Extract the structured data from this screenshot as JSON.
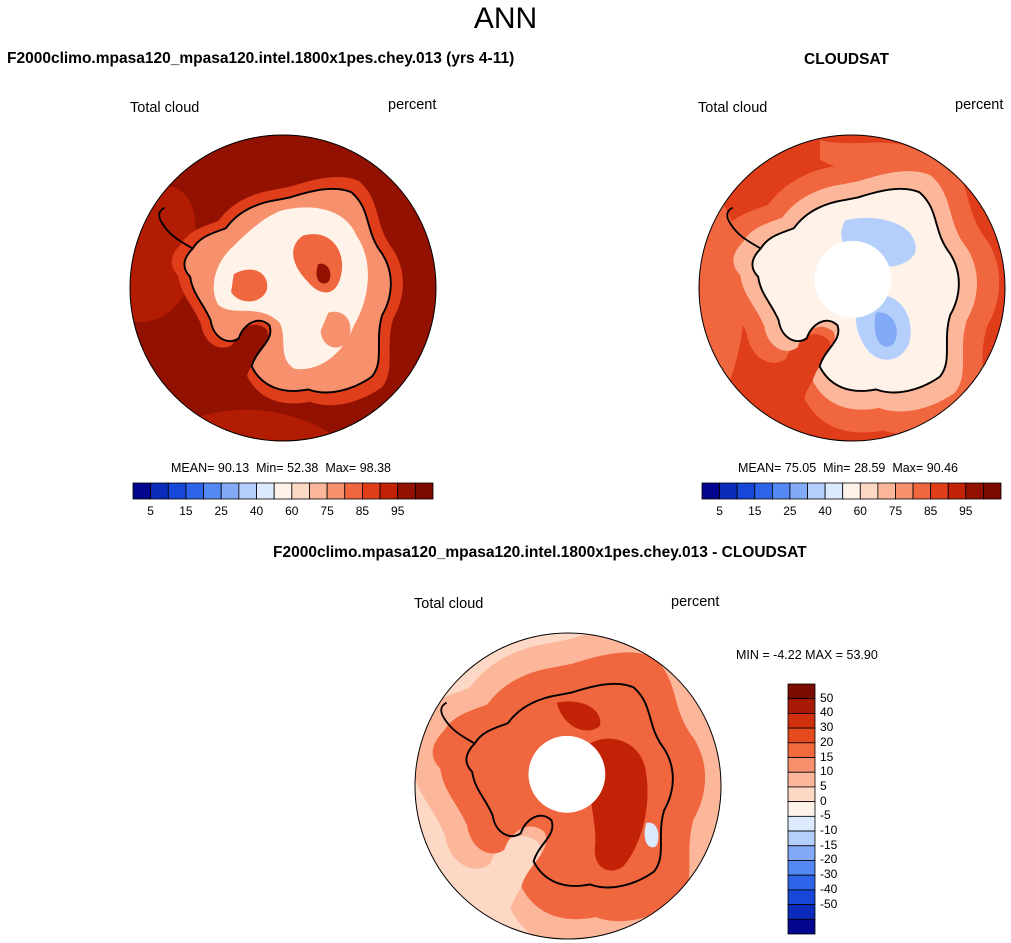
{
  "page": {
    "season": "ANN"
  },
  "panels": [
    {
      "id": "test",
      "title": "F2000climo.mpasa120_mpasa120.intel.1800x1pes.chey.013 (yrs 4-11)",
      "variable": "Total cloud",
      "units": "percent",
      "mean": "90.13",
      "min": "52.38",
      "max": "98.38"
    },
    {
      "id": "reference",
      "title": "CLOUDSAT",
      "variable": "Total cloud",
      "units": "percent",
      "mean": "75.05",
      "min": "28.59",
      "max": "90.46"
    },
    {
      "id": "difference",
      "title": "F2000climo.mpasa120_mpasa120.intel.1800x1pes.chey.013 - CLOUDSAT",
      "variable": "Total cloud",
      "units": "percent",
      "min": "-4.22",
      "max": "53.90"
    }
  ],
  "labels": {
    "mean_label": "MEAN=",
    "min_label": "Min=",
    "max_label": "Max=",
    "diff_min_label": "MIN =",
    "diff_max_label": "MAX ="
  },
  "colorbar_main": {
    "colors": [
      "#05068f",
      "#0b2bbb",
      "#1747d6",
      "#2e64e8",
      "#5488f2",
      "#82aaf7",
      "#b4cffb",
      "#dceafd",
      "#fff2e8",
      "#fdd8c4",
      "#fcb79b",
      "#f7906c",
      "#f0663f",
      "#e03e1a",
      "#c22307",
      "#931100",
      "#7a0b00"
    ],
    "tick_labels": [
      "5",
      "15",
      "25",
      "40",
      "60",
      "75",
      "85",
      "95"
    ]
  },
  "colorbar_diff": {
    "colors": [
      "#7a0b00",
      "#a81a05",
      "#cf300e",
      "#e54a1e",
      "#f2693d",
      "#f7906c",
      "#fcb79b",
      "#fdd8c4",
      "#fff2e8",
      "#dceafd",
      "#b4cffb",
      "#82aaf7",
      "#5488f2",
      "#2e64e8",
      "#1747d6",
      "#0b2bbb",
      "#05068f"
    ],
    "tick_labels": [
      "50",
      "40",
      "30",
      "20",
      "15",
      "10",
      "5",
      "0",
      "-5",
      "-10",
      "-15",
      "-20",
      "-30",
      "-40",
      "-50"
    ]
  },
  "map_colors": {
    "test_ocean": "#931100",
    "test_ocean_edge": "#b11c02",
    "ref_ocean": "#e03e1a",
    "ref_mid": "#f0663f",
    "ref_coast": "#fcb79b",
    "ref_interior": "#fff2e8",
    "ref_blue": "#b4cffb",
    "ref_blue_dark": "#82aaf7",
    "diff_outer": "#fdd8c4",
    "diff_mid": "#fcb79b",
    "diff_band": "#f0663f",
    "diff_inner": "#c22307",
    "diff_blue": "#dceafd",
    "missing": "#ffffff",
    "coastline": "#000000"
  }
}
